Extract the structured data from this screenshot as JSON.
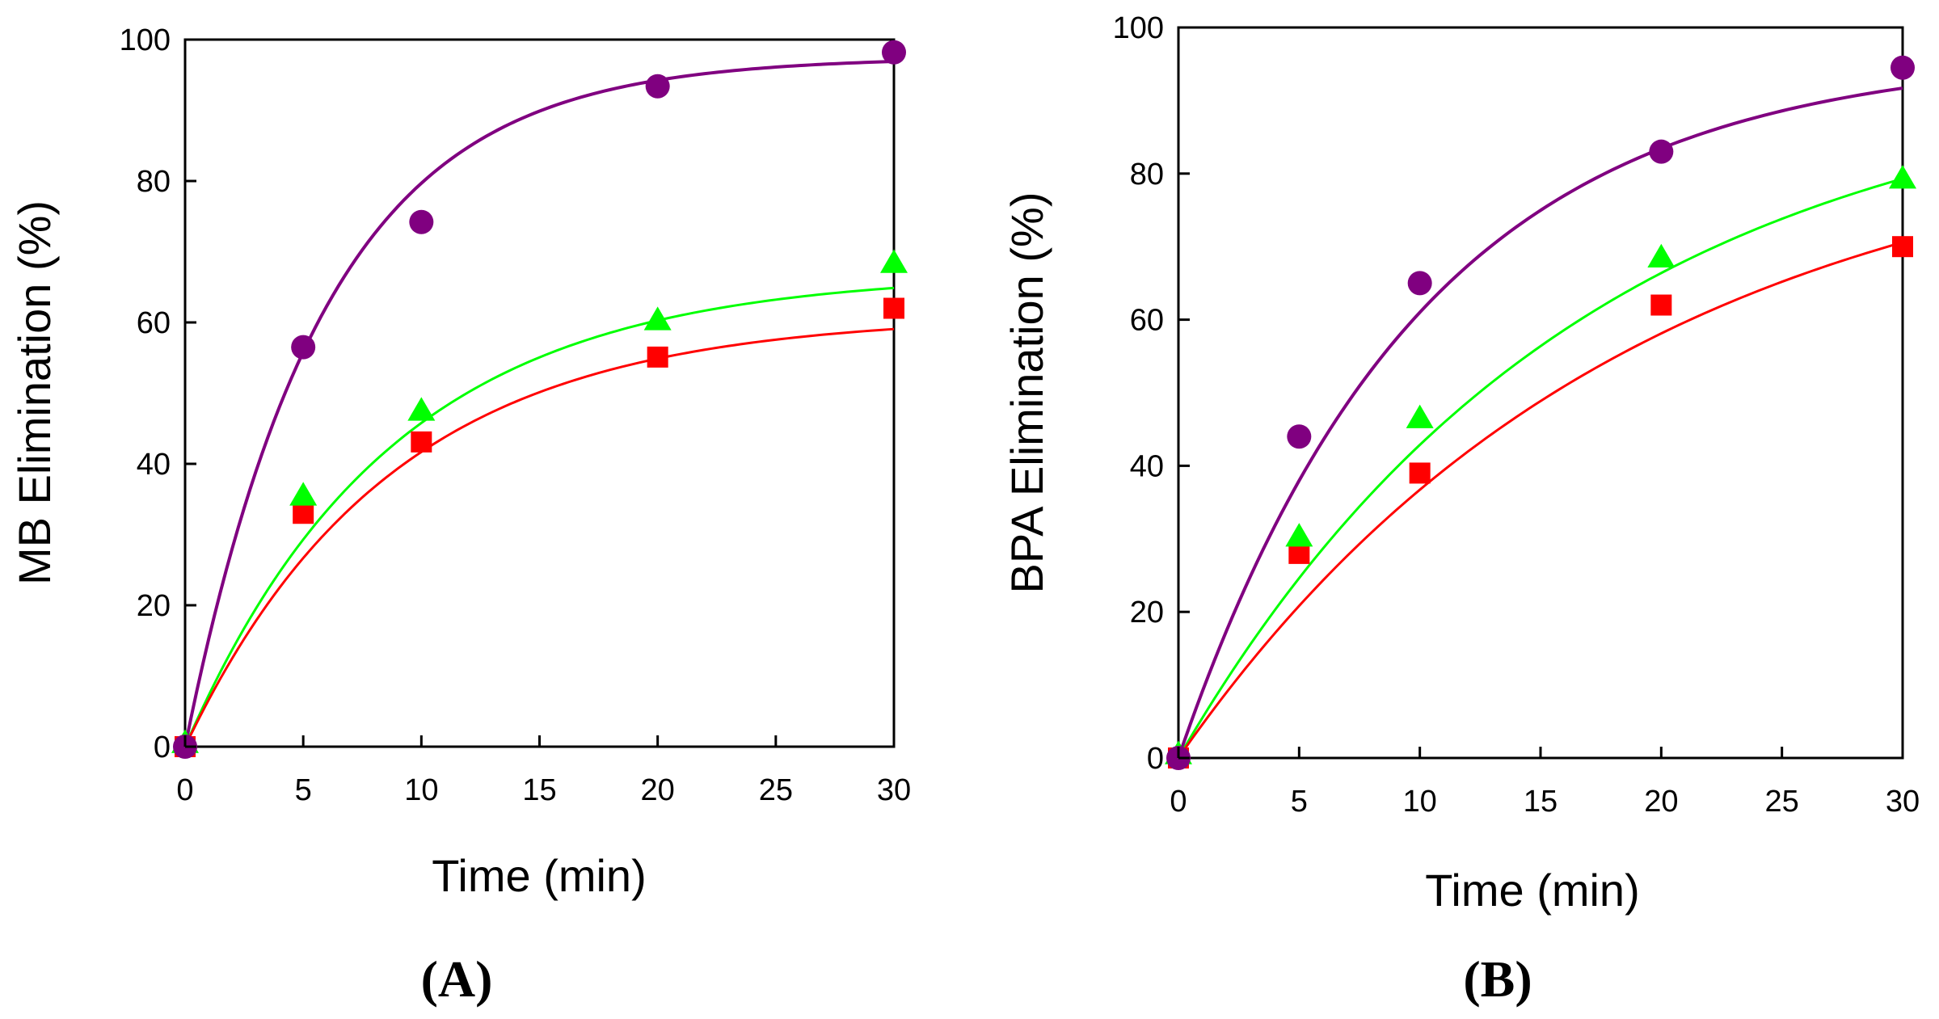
{
  "colors": {
    "circle": "#800080",
    "triangle": "#00ff00",
    "square": "#ff0000"
  },
  "chart_data": [
    {
      "type": "scatter",
      "panel_label": "(A)",
      "xlabel": "Time (min)",
      "ylabel": "MB Elimination (%)",
      "xlim": [
        0,
        30
      ],
      "ylim": [
        0,
        100
      ],
      "xticks": [
        0,
        5,
        10,
        15,
        20,
        25,
        30
      ],
      "yticks": [
        0,
        20,
        40,
        60,
        80,
        100
      ],
      "x": [
        0,
        5,
        10,
        20,
        30
      ],
      "series": [
        {
          "name": "circle",
          "marker": "circle",
          "color": "#800080",
          "values": [
            0,
            56.5,
            74.2,
            93.4,
            98.2
          ],
          "fit": {
            "a": 97.5,
            "k": 0.17
          }
        },
        {
          "name": "triangle",
          "marker": "triangle",
          "color": "#00ff00",
          "values": [
            0.5,
            35.5,
            47.5,
            60.3,
            68.4
          ],
          "fit": {
            "a": 67,
            "k": 0.115
          }
        },
        {
          "name": "square",
          "marker": "square",
          "color": "#ff0000",
          "values": [
            0,
            33,
            43.1,
            55.1,
            62
          ],
          "fit": {
            "a": 61,
            "k": 0.115
          }
        }
      ]
    },
    {
      "type": "scatter",
      "panel_label": "(B)",
      "xlabel": "Time (min)",
      "ylabel": "BPA Elimination (%)",
      "xlim": [
        0,
        30
      ],
      "ylim": [
        0,
        100
      ],
      "xticks": [
        0,
        5,
        10,
        15,
        20,
        25,
        30
      ],
      "yticks": [
        0,
        20,
        40,
        60,
        80,
        100
      ],
      "x": [
        0,
        5,
        10,
        20,
        30
      ],
      "series": [
        {
          "name": "circle",
          "marker": "circle",
          "color": "#800080",
          "values": [
            0,
            44,
            65,
            83,
            94.5
          ],
          "fit": {
            "a": 96.5,
            "k": 0.1
          }
        },
        {
          "name": "triangle",
          "marker": "triangle",
          "color": "#00ff00",
          "values": [
            0.5,
            30.3,
            46.5,
            68.5,
            79.3
          ],
          "fit": {
            "a": 95,
            "k": 0.06
          }
        },
        {
          "name": "square",
          "marker": "square",
          "color": "#ff0000",
          "values": [
            0,
            28,
            39,
            62,
            70
          ],
          "fit": {
            "a": 88,
            "k": 0.054
          }
        }
      ]
    }
  ]
}
